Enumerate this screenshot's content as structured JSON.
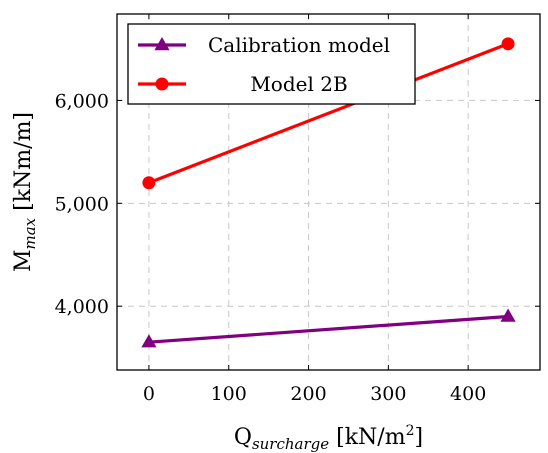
{
  "chart_data": {
    "type": "line",
    "xlabel": {
      "base": "Q",
      "sub": "surcharge",
      "unit_prefix": " [kN/m",
      "sup": "2",
      "unit_suffix": "]"
    },
    "ylabel": {
      "base": "M",
      "sub": "max",
      "unit": " [kNm/m]"
    },
    "xlim": [
      -40,
      490
    ],
    "ylim": [
      3380,
      6840
    ],
    "xticks": [
      0,
      100,
      200,
      300,
      400
    ],
    "xtick_labels": [
      "0",
      "100",
      "200",
      "300",
      "400"
    ],
    "yticks": [
      4000,
      5000,
      6000
    ],
    "ytick_labels": [
      "4,000",
      "5,000",
      "6,000"
    ],
    "grid": true,
    "legend_position": "top-left",
    "series": [
      {
        "name": "Calibration model",
        "color": "#800080",
        "marker": "triangle",
        "x": [
          0,
          450
        ],
        "y": [
          3650,
          3900
        ]
      },
      {
        "name": "Model 2B",
        "color": "#ff0000",
        "marker": "circle",
        "x": [
          0,
          450
        ],
        "y": [
          5200,
          6550
        ]
      }
    ]
  }
}
